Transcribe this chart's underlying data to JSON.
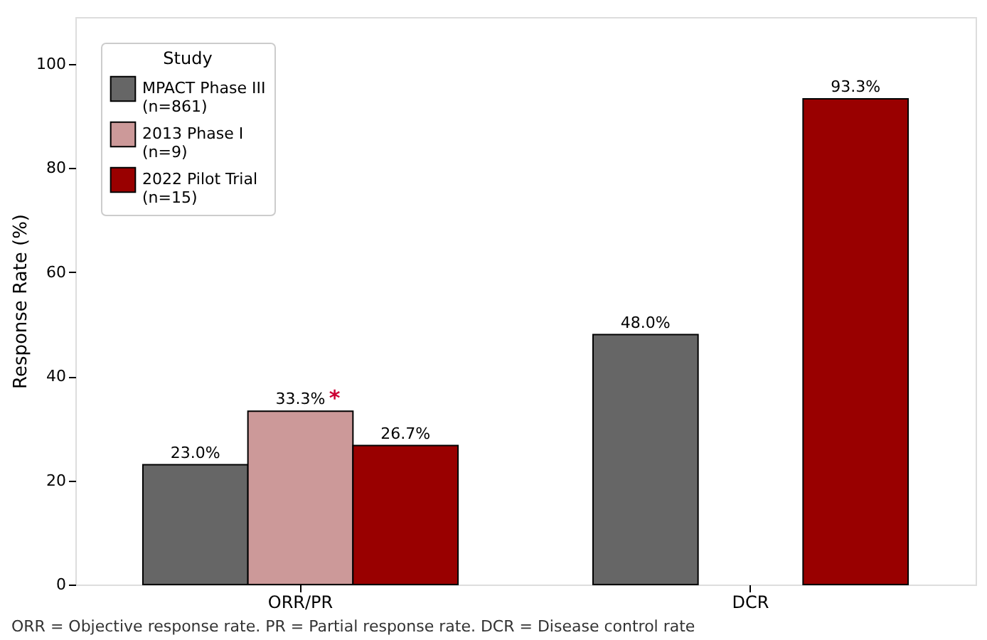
{
  "chart_data": {
    "type": "bar",
    "ylabel": "Response Rate (%)",
    "legend_title": "Study",
    "legend": "top left",
    "grid": false,
    "categories": [
      "ORR/PR",
      "DCR"
    ],
    "series": [
      {
        "name": "MPACT Phase III\n(n=861)",
        "color": "#666666",
        "values": [
          23.0,
          48.0
        ],
        "value_labels": [
          "23.0%",
          "48.0%"
        ]
      },
      {
        "name": "2013 Phase I\n(n=9)",
        "color": "#cc9999",
        "values": [
          33.3,
          null
        ],
        "value_labels": [
          "33.3%",
          null
        ]
      },
      {
        "name": "2022 Pilot Trial\n(n=15)",
        "color": "#990000",
        "values": [
          26.7,
          93.3
        ],
        "value_labels": [
          "26.7%",
          "93.3%"
        ]
      }
    ],
    "ylim": [
      0,
      109
    ],
    "yticks": [
      0,
      20,
      40,
      60,
      80,
      100
    ],
    "annotations": [
      {
        "text": "*",
        "x": "ORR/PR",
        "y": 33.3
      },
      "ORR = Objective response rate. PR = Partial response rate. DCR = Disease control rate"
    ]
  }
}
